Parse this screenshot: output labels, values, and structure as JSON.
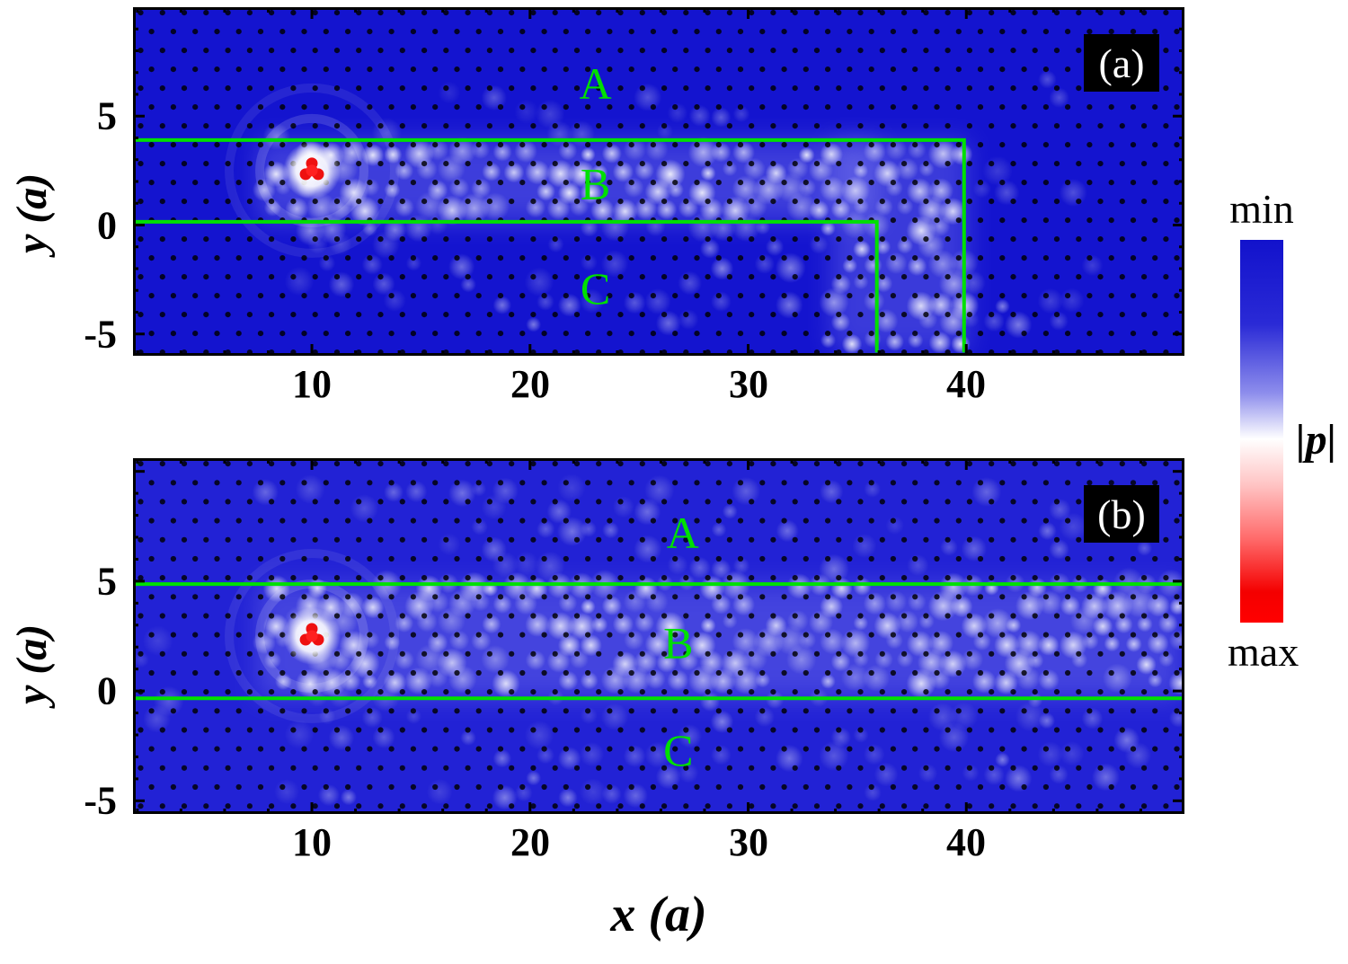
{
  "figure": {
    "axes": {
      "xlabel": "x (a)",
      "ylabel": "y (a)"
    },
    "colorbar": {
      "min_label": "min",
      "max_label": "max",
      "quantity_label": "|p|",
      "gradient_stops": [
        "#1212cc 0%",
        "#2a2ad6 22%",
        "#8d8dec 40%",
        "#ffffff 52%",
        "#ffc4c4 64%",
        "#ff6b6b 78%",
        "#f40000 92%",
        "#ff0000 100%"
      ]
    }
  },
  "chart_data": {
    "type": "heatmap",
    "quantity": "|p| acoustic pressure magnitude field",
    "value_scale": {
      "min": "min",
      "max": "max",
      "label": "|p|"
    },
    "guide_color": "#00e000",
    "dot_color": "#000000",
    "lattice": {
      "type": "triangular",
      "spacing": "1 a",
      "marker": "black dots (rods)"
    },
    "panels": [
      {
        "label": "(a)",
        "xlim": [
          1.8,
          50
        ],
        "ylim": [
          -6,
          10
        ],
        "xticks": [
          10,
          20,
          30,
          40
        ],
        "yticks": [
          5,
          0,
          -5
        ],
        "base_color": "#1414cf",
        "source": {
          "x": 10,
          "y": 2.5,
          "note": "red max-|p| point source"
        },
        "region_labels": [
          {
            "text": "A",
            "x": 23,
            "y": 6.5
          },
          {
            "text": "B",
            "x": 23,
            "y": 1.9
          },
          {
            "text": "C",
            "x": 23,
            "y": -2.9
          }
        ],
        "guide_lines": [
          {
            "points": [
              [
                1.8,
                3.9
              ],
              [
                39.9,
                3.9
              ],
              [
                39.9,
                -5.85
              ]
            ]
          },
          {
            "points": [
              [
                1.8,
                0.15
              ],
              [
                35.9,
                0.15
              ],
              [
                35.9,
                -5.85
              ]
            ]
          }
        ],
        "field_regions": [
          {
            "x0": 7.5,
            "x1": 36,
            "y0": 0.15,
            "y1": 3.9,
            "intensity": 0.8
          },
          {
            "x0": 33.8,
            "x1": 40.1,
            "y0": -5.8,
            "y1": 3.9,
            "intensity": 0.75
          },
          {
            "x0": 8,
            "x1": 34,
            "y0": -4.8,
            "y1": 0.15,
            "intensity": 0.32
          },
          {
            "x0": 7.5,
            "x1": 32,
            "y0": 3.9,
            "y1": 6.2,
            "intensity": 0.15
          },
          {
            "x0": 36,
            "x1": 45,
            "y0": -5.8,
            "y1": -2.5,
            "intensity": 0.3
          },
          {
            "x0": 40.5,
            "x1": 46,
            "y0": -2.5,
            "y1": 8,
            "intensity": 0.1
          }
        ]
      },
      {
        "label": "(b)",
        "xlim": [
          1.8,
          50
        ],
        "ylim": [
          -5.6,
          10.6
        ],
        "xticks": [
          10,
          20,
          30,
          40
        ],
        "yticks": [
          5,
          0,
          -5
        ],
        "base_color": "#2222d5",
        "source": {
          "x": 10,
          "y": 2.5,
          "note": "red max-|p| point source"
        },
        "region_labels": [
          {
            "text": "A",
            "x": 27,
            "y": 7.2
          },
          {
            "text": "B",
            "x": 26.8,
            "y": 2.2
          },
          {
            "text": "C",
            "x": 26.8,
            "y": -2.7
          }
        ],
        "guide_lines": [
          {
            "points": [
              [
                1.8,
                4.87
              ],
              [
                50,
                4.87
              ]
            ]
          },
          {
            "points": [
              [
                1.8,
                -0.33
              ],
              [
                50,
                -0.33
              ]
            ]
          }
        ],
        "field_regions": [
          {
            "x0": 7.5,
            "x1": 49.8,
            "y0": -0.33,
            "y1": 4.87,
            "intensity": 0.72
          },
          {
            "x0": 7.5,
            "x1": 49.8,
            "y0": -5.4,
            "y1": -0.33,
            "intensity": 0.26
          },
          {
            "x0": 7.5,
            "x1": 49.8,
            "y0": 4.87,
            "y1": 9.6,
            "intensity": 0.2
          },
          {
            "x0": 2.2,
            "x1": 7.5,
            "y0": -2.5,
            "y1": 6,
            "intensity": 0.12
          }
        ]
      }
    ]
  }
}
